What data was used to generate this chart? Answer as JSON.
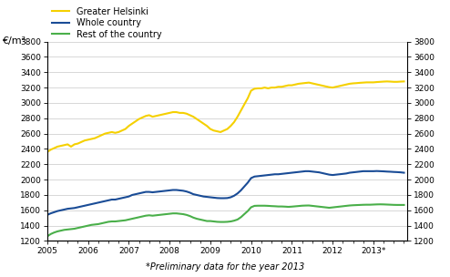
{
  "ylabel_left": "€/m²",
  "footnote": "*Preliminary data for the year 2013",
  "xlim": [
    2005.0,
    2013.83
  ],
  "ylim": [
    1200,
    3800
  ],
  "yticks": [
    1200,
    1400,
    1600,
    1800,
    2000,
    2200,
    2400,
    2600,
    2800,
    3000,
    3200,
    3400,
    3600,
    3800
  ],
  "xtick_labels": [
    "2005",
    "2006",
    "2007",
    "2008",
    "2009",
    "2010",
    "2011",
    "2012",
    "2013*"
  ],
  "xtick_positions": [
    2005,
    2006,
    2007,
    2008,
    2009,
    2010,
    2011,
    2012,
    2013
  ],
  "series": {
    "Greater Helsinki": {
      "color": "#F5D000",
      "linewidth": 1.5,
      "x": [
        2005.0,
        2005.083,
        2005.167,
        2005.25,
        2005.333,
        2005.417,
        2005.5,
        2005.583,
        2005.667,
        2005.75,
        2005.833,
        2005.917,
        2006.0,
        2006.083,
        2006.167,
        2006.25,
        2006.333,
        2006.417,
        2006.5,
        2006.583,
        2006.667,
        2006.75,
        2006.833,
        2006.917,
        2007.0,
        2007.083,
        2007.167,
        2007.25,
        2007.333,
        2007.417,
        2007.5,
        2007.583,
        2007.667,
        2007.75,
        2007.833,
        2007.917,
        2008.0,
        2008.083,
        2008.167,
        2008.25,
        2008.333,
        2008.417,
        2008.5,
        2008.583,
        2008.667,
        2008.75,
        2008.833,
        2008.917,
        2009.0,
        2009.083,
        2009.167,
        2009.25,
        2009.333,
        2009.417,
        2009.5,
        2009.583,
        2009.667,
        2009.75,
        2009.833,
        2009.917,
        2010.0,
        2010.083,
        2010.167,
        2010.25,
        2010.333,
        2010.417,
        2010.5,
        2010.583,
        2010.667,
        2010.75,
        2010.833,
        2010.917,
        2011.0,
        2011.083,
        2011.167,
        2011.25,
        2011.333,
        2011.417,
        2011.5,
        2011.583,
        2011.667,
        2011.75,
        2011.833,
        2011.917,
        2012.0,
        2012.083,
        2012.167,
        2012.25,
        2012.333,
        2012.417,
        2012.5,
        2012.583,
        2012.667,
        2012.75,
        2012.833,
        2012.917,
        2013.0,
        2013.083,
        2013.167,
        2013.25,
        2013.333,
        2013.417,
        2013.5,
        2013.583,
        2013.667,
        2013.75
      ],
      "y": [
        2360,
        2390,
        2410,
        2430,
        2440,
        2450,
        2460,
        2430,
        2460,
        2470,
        2490,
        2510,
        2520,
        2530,
        2540,
        2560,
        2580,
        2600,
        2610,
        2620,
        2610,
        2620,
        2640,
        2660,
        2700,
        2730,
        2760,
        2790,
        2810,
        2830,
        2840,
        2820,
        2830,
        2840,
        2850,
        2860,
        2870,
        2880,
        2880,
        2870,
        2870,
        2860,
        2840,
        2820,
        2790,
        2760,
        2730,
        2700,
        2660,
        2640,
        2630,
        2620,
        2640,
        2660,
        2700,
        2750,
        2820,
        2900,
        2980,
        3060,
        3160,
        3185,
        3190,
        3190,
        3200,
        3190,
        3200,
        3200,
        3210,
        3210,
        3220,
        3230,
        3230,
        3240,
        3250,
        3255,
        3260,
        3265,
        3255,
        3245,
        3235,
        3225,
        3215,
        3205,
        3200,
        3210,
        3220,
        3230,
        3240,
        3250,
        3255,
        3258,
        3262,
        3265,
        3268,
        3268,
        3268,
        3272,
        3275,
        3278,
        3280,
        3278,
        3275,
        3275,
        3278,
        3280
      ]
    },
    "Whole country": {
      "color": "#1A4C96",
      "linewidth": 1.5,
      "x": [
        2005.0,
        2005.083,
        2005.167,
        2005.25,
        2005.333,
        2005.417,
        2005.5,
        2005.583,
        2005.667,
        2005.75,
        2005.833,
        2005.917,
        2006.0,
        2006.083,
        2006.167,
        2006.25,
        2006.333,
        2006.417,
        2006.5,
        2006.583,
        2006.667,
        2006.75,
        2006.833,
        2006.917,
        2007.0,
        2007.083,
        2007.167,
        2007.25,
        2007.333,
        2007.417,
        2007.5,
        2007.583,
        2007.667,
        2007.75,
        2007.833,
        2007.917,
        2008.0,
        2008.083,
        2008.167,
        2008.25,
        2008.333,
        2008.417,
        2008.5,
        2008.583,
        2008.667,
        2008.75,
        2008.833,
        2008.917,
        2009.0,
        2009.083,
        2009.167,
        2009.25,
        2009.333,
        2009.417,
        2009.5,
        2009.583,
        2009.667,
        2009.75,
        2009.833,
        2009.917,
        2010.0,
        2010.083,
        2010.167,
        2010.25,
        2010.333,
        2010.417,
        2010.5,
        2010.583,
        2010.667,
        2010.75,
        2010.833,
        2010.917,
        2011.0,
        2011.083,
        2011.167,
        2011.25,
        2011.333,
        2011.417,
        2011.5,
        2011.583,
        2011.667,
        2011.75,
        2011.833,
        2011.917,
        2012.0,
        2012.083,
        2012.167,
        2012.25,
        2012.333,
        2012.417,
        2012.5,
        2012.583,
        2012.667,
        2012.75,
        2012.833,
        2012.917,
        2013.0,
        2013.083,
        2013.167,
        2013.25,
        2013.333,
        2013.417,
        2013.5,
        2013.583,
        2013.667,
        2013.75
      ],
      "y": [
        1540,
        1560,
        1575,
        1590,
        1600,
        1610,
        1620,
        1625,
        1630,
        1640,
        1650,
        1660,
        1670,
        1680,
        1690,
        1700,
        1710,
        1720,
        1730,
        1740,
        1740,
        1750,
        1760,
        1770,
        1780,
        1800,
        1810,
        1820,
        1830,
        1840,
        1840,
        1835,
        1840,
        1845,
        1850,
        1855,
        1860,
        1865,
        1865,
        1860,
        1855,
        1845,
        1830,
        1810,
        1800,
        1790,
        1780,
        1775,
        1770,
        1765,
        1760,
        1758,
        1758,
        1760,
        1770,
        1790,
        1820,
        1860,
        1910,
        1960,
        2020,
        2040,
        2045,
        2050,
        2055,
        2060,
        2065,
        2070,
        2070,
        2075,
        2080,
        2085,
        2090,
        2095,
        2100,
        2105,
        2110,
        2110,
        2105,
        2100,
        2095,
        2085,
        2075,
        2065,
        2060,
        2065,
        2070,
        2075,
        2080,
        2090,
        2095,
        2100,
        2105,
        2110,
        2110,
        2110,
        2110,
        2112,
        2110,
        2108,
        2105,
        2103,
        2100,
        2098,
        2095,
        2090
      ]
    },
    "Rest of the country": {
      "color": "#4AAF4A",
      "linewidth": 1.5,
      "x": [
        2005.0,
        2005.083,
        2005.167,
        2005.25,
        2005.333,
        2005.417,
        2005.5,
        2005.583,
        2005.667,
        2005.75,
        2005.833,
        2005.917,
        2006.0,
        2006.083,
        2006.167,
        2006.25,
        2006.333,
        2006.417,
        2006.5,
        2006.583,
        2006.667,
        2006.75,
        2006.833,
        2006.917,
        2007.0,
        2007.083,
        2007.167,
        2007.25,
        2007.333,
        2007.417,
        2007.5,
        2007.583,
        2007.667,
        2007.75,
        2007.833,
        2007.917,
        2008.0,
        2008.083,
        2008.167,
        2008.25,
        2008.333,
        2008.417,
        2008.5,
        2008.583,
        2008.667,
        2008.75,
        2008.833,
        2008.917,
        2009.0,
        2009.083,
        2009.167,
        2009.25,
        2009.333,
        2009.417,
        2009.5,
        2009.583,
        2009.667,
        2009.75,
        2009.833,
        2009.917,
        2010.0,
        2010.083,
        2010.167,
        2010.25,
        2010.333,
        2010.417,
        2010.5,
        2010.583,
        2010.667,
        2010.75,
        2010.833,
        2010.917,
        2011.0,
        2011.083,
        2011.167,
        2011.25,
        2011.333,
        2011.417,
        2011.5,
        2011.583,
        2011.667,
        2011.75,
        2011.833,
        2011.917,
        2012.0,
        2012.083,
        2012.167,
        2012.25,
        2012.333,
        2012.417,
        2012.5,
        2012.583,
        2012.667,
        2012.75,
        2012.833,
        2012.917,
        2013.0,
        2013.083,
        2013.167,
        2013.25,
        2013.333,
        2013.417,
        2013.5,
        2013.583,
        2013.667,
        2013.75
      ],
      "y": [
        1260,
        1290,
        1310,
        1325,
        1335,
        1345,
        1350,
        1355,
        1360,
        1370,
        1380,
        1390,
        1400,
        1410,
        1415,
        1420,
        1430,
        1440,
        1450,
        1455,
        1455,
        1460,
        1465,
        1470,
        1480,
        1490,
        1500,
        1510,
        1520,
        1530,
        1535,
        1530,
        1535,
        1540,
        1545,
        1550,
        1555,
        1560,
        1560,
        1555,
        1550,
        1540,
        1525,
        1505,
        1490,
        1480,
        1470,
        1460,
        1460,
        1455,
        1450,
        1448,
        1448,
        1450,
        1455,
        1465,
        1480,
        1510,
        1550,
        1590,
        1640,
        1658,
        1660,
        1660,
        1660,
        1658,
        1655,
        1653,
        1650,
        1650,
        1648,
        1645,
        1648,
        1652,
        1656,
        1660,
        1662,
        1663,
        1658,
        1653,
        1648,
        1643,
        1638,
        1633,
        1638,
        1643,
        1648,
        1653,
        1658,
        1663,
        1666,
        1668,
        1670,
        1672,
        1673,
        1673,
        1675,
        1677,
        1678,
        1677,
        1675,
        1673,
        1671,
        1670,
        1670,
        1670
      ]
    }
  },
  "legend_order": [
    "Greater Helsinki",
    "Whole country",
    "Rest of the country"
  ],
  "background_color": "#ffffff",
  "grid_color": "#c8c8c8"
}
